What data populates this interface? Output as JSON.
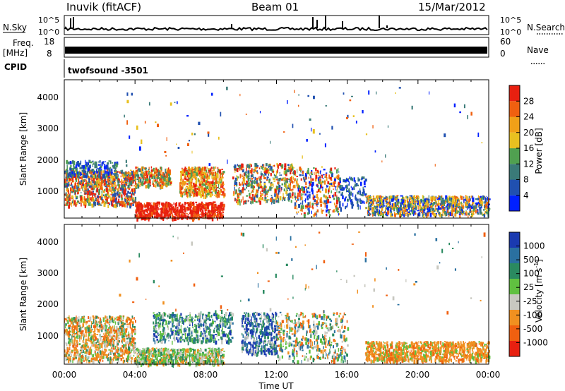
{
  "header": {
    "station": "Inuvik (fitACF)",
    "beam": "Beam 01",
    "date": "15/Mar/2012"
  },
  "chart_data": [
    {
      "type": "line",
      "panel": "noise",
      "left_label": "N.Sky",
      "right_label": "N.Search",
      "left_ticks": [
        "10^5",
        "10^0"
      ],
      "right_ticks": [
        "10^5",
        "10^0"
      ]
    },
    {
      "type": "line",
      "panel": "frequency",
      "left_label_top": "Freq.",
      "left_label_bottom": "[MHz]",
      "right_label": "Nave",
      "left_ticks": [
        "18",
        "8"
      ],
      "right_ticks": [
        "60",
        "0"
      ],
      "freq_level_mhz": 11
    },
    {
      "type": "table",
      "panel": "cpid",
      "label": "CPID",
      "program": "twofsound -3501"
    },
    {
      "type": "heatmap",
      "panel": "power",
      "ylabel": "Slant Range [km]",
      "yticks": [
        "4000",
        "3000",
        "2000",
        "1000"
      ],
      "colorbar_label": "Power [dB]",
      "colorbar_ticks": [
        "28",
        "24",
        "20",
        "16",
        "12",
        "8",
        "4"
      ],
      "colors": [
        "#0020ff",
        "#2050b0",
        "#3a7a78",
        "#50a050",
        "#e8c020",
        "#f0a018",
        "#f06010",
        "#e82010"
      ],
      "ylim": [
        180,
        4500
      ],
      "xlim_hours": [
        0,
        24
      ]
    },
    {
      "type": "heatmap",
      "panel": "velocity",
      "ylabel": "Slant Range [km]",
      "yticks": [
        "4000",
        "3000",
        "2000",
        "1000"
      ],
      "colorbar_label": "Velocity [m s",
      "colorbar_label_sup": "-1",
      "colorbar_label_close": "]",
      "colorbar_ticks": [
        "1000",
        "500",
        "100",
        "25",
        "-25",
        "-100",
        "-500",
        "-1000"
      ],
      "colors": [
        "#1a3ab0",
        "#2a70a0",
        "#2a8a60",
        "#60c040",
        "#c8c8c0",
        "#f09020",
        "#f06010",
        "#e82010"
      ],
      "ylim": [
        180,
        4500
      ],
      "xlim_hours": [
        0,
        24
      ]
    }
  ],
  "xaxis": {
    "ticks": [
      "00:00",
      "04:00",
      "08:00",
      "12:00",
      "16:00",
      "20:00",
      "00:00"
    ],
    "label": "Time UT"
  }
}
